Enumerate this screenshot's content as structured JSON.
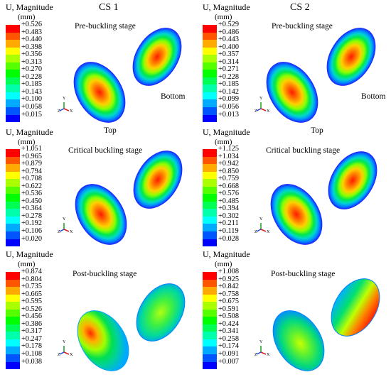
{
  "colors": {
    "legend_bands": [
      "#ff0000",
      "#ff5500",
      "#ffaa00",
      "#ffff00",
      "#aaff00",
      "#55ff00",
      "#00ff00",
      "#00ff55",
      "#00ffaa",
      "#00ffff",
      "#00aaff",
      "#0055ff",
      "#0000ff"
    ],
    "contour_outer": "#1a3cff",
    "contour_mid": "#00e88a",
    "contour_hot": "#ff1a00"
  },
  "columns": [
    {
      "title": "CS 1",
      "panels": [
        {
          "legend_title": "U, Magnitude",
          "legend_unit": "(mm)",
          "stage": "Pre-buckling stage",
          "values": [
            "+0.526",
            "+0.483",
            "+0.440",
            "+0.398",
            "+0.356",
            "+0.313",
            "+0.270",
            "+0.228",
            "+0.185",
            "+0.143",
            "+0.100",
            "+0.058",
            "+0.015"
          ],
          "label_right": "Bottom",
          "label_below": "Top"
        },
        {
          "legend_title": "U, Magnitude",
          "legend_unit": "(mm)",
          "stage": "Critical buckling stage",
          "values": [
            "+1.051",
            "+0.965",
            "+0.879",
            "+0.794",
            "+0.708",
            "+0.622",
            "+0.536",
            "+0.450",
            "+0.364",
            "+0.278",
            "+0.192",
            "+0.106",
            "+0.020"
          ]
        },
        {
          "legend_title": "U, Magnitude",
          "legend_unit": "(mm)",
          "stage": "Post-buckling stage",
          "values": [
            "+0.874",
            "+0.804",
            "+0.735",
            "+0.665",
            "+0.595",
            "+0.526",
            "+0.456",
            "+0.386",
            "+0.317",
            "+0.247",
            "+0.178",
            "+0.108",
            "+0.038"
          ]
        }
      ]
    },
    {
      "title": "CS 2",
      "panels": [
        {
          "legend_title": "U, Magnitude",
          "legend_unit": "(mm)",
          "stage": "Pre-buckling stage",
          "values": [
            "+0.529",
            "+0.486",
            "+0.443",
            "+0.400",
            "+0.357",
            "+0.314",
            "+0.271",
            "+0.228",
            "+0.185",
            "+0.142",
            "+0.099",
            "+0.056",
            "+0.013"
          ],
          "label_right": "Bottom",
          "label_below": "Top"
        },
        {
          "legend_title": "U, Magnitude",
          "legend_unit": "(mm)",
          "stage": "Critical buckling stage",
          "values": [
            "+1.125",
            "+1.034",
            "+0.942",
            "+0.850",
            "+0.759",
            "+0.668",
            "+0.576",
            "+0.485",
            "+0.394",
            "+0.302",
            "+0.211",
            "+0.119",
            "+0.028"
          ]
        },
        {
          "legend_title": "U, Magnitude",
          "legend_unit": "(mm)",
          "stage": "Post-buckling stage",
          "values": [
            "+1.008",
            "+0.925",
            "+0.842",
            "+0.758",
            "+0.675",
            "+0.591",
            "+0.508",
            "+0.424",
            "+0.341",
            "+0.258",
            "+0.174",
            "+0.091",
            "+0.007"
          ]
        }
      ]
    }
  ],
  "axis_triad": {
    "x": "X",
    "y": "Y",
    "z": "Z"
  }
}
